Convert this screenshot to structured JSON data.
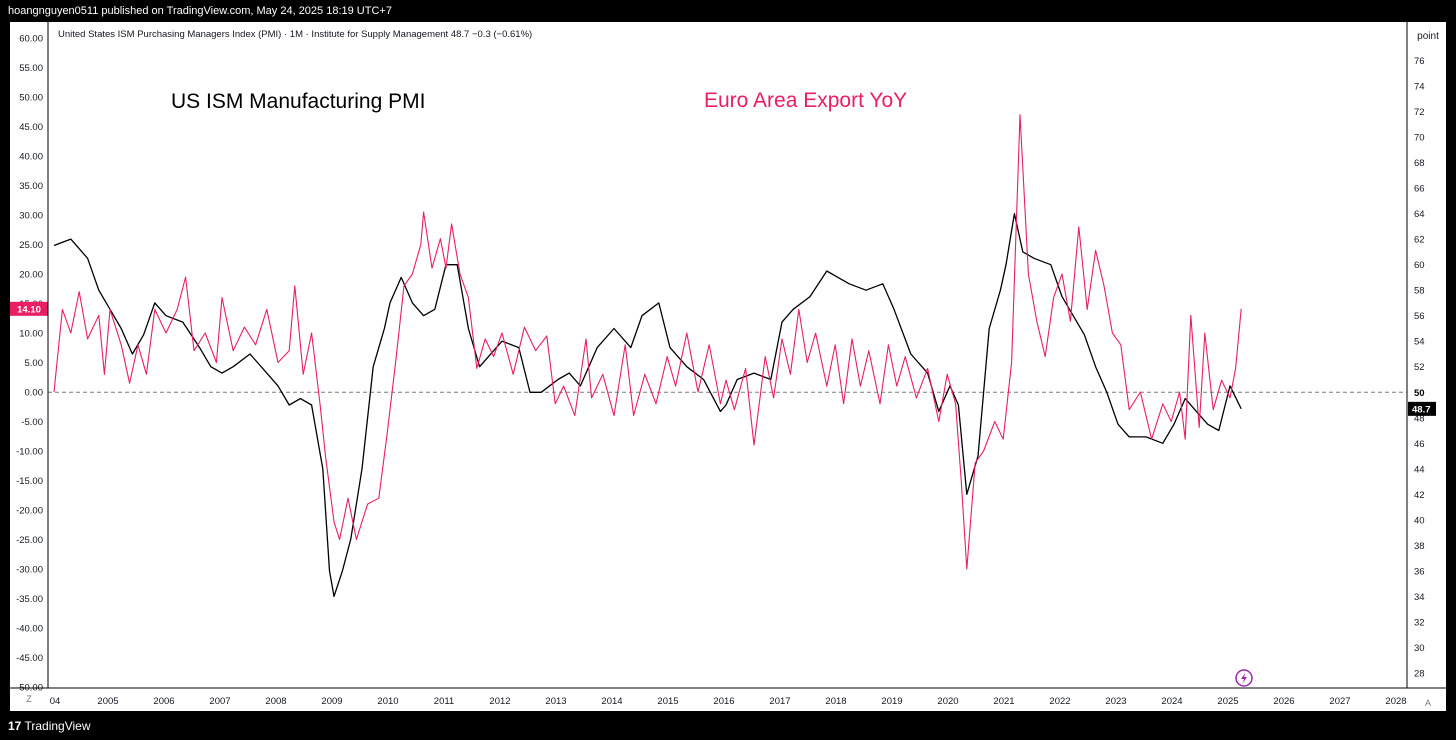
{
  "header": {
    "published_text": "hoangnguyen0511 published on TradingView.com, May 24, 2025 18:19 UTC+7"
  },
  "footer": {
    "brand": "TradingView",
    "logo_mark": "17"
  },
  "colors": {
    "pmi": "#000000",
    "export": "#e91e63",
    "background": "#ffffff",
    "frame": "#000000"
  },
  "chart_data": {
    "type": "line",
    "legend_text": "United States ISM Purchasing Managers Index (PMI) · 1M · Institute for Supply Management  48.7  −0.3 (−0.61%)",
    "annotations": {
      "pmi_label": "US ISM Manufacturing PMI",
      "export_label": "Euro Area Export YoY"
    },
    "left_axis": {
      "min": -50,
      "max": 60,
      "step": 5,
      "tick_labels": [
        "60.00",
        "55.00",
        "50.00",
        "45.00",
        "40.00",
        "35.00",
        "30.00",
        "25.00",
        "20.00",
        "15.00",
        "10.00",
        "5.00",
        "0.00",
        "-5.00",
        "-10.00",
        "-15.00",
        "-20.00",
        "-25.00",
        "-30.00",
        "-35.00",
        "-40.00",
        "-45.00",
        "-50.00"
      ],
      "current_label": "14.10",
      "corner_label": "Z"
    },
    "right_axis": {
      "unit": "point",
      "min": 26,
      "max": 78,
      "tick_labels": [
        "76",
        "74",
        "72",
        "70",
        "68",
        "66",
        "64",
        "62",
        "60",
        "58",
        "56",
        "54",
        "52",
        "50",
        "48",
        "46",
        "44",
        "42",
        "40",
        "38",
        "36",
        "34",
        "32",
        "30",
        "28"
      ],
      "reference_label": "50",
      "current_label": "48.7",
      "corner_label": "A"
    },
    "x_axis": {
      "tick_labels": [
        "04",
        "2005",
        "2006",
        "2007",
        "2008",
        "2009",
        "2010",
        "2011",
        "2012",
        "2013",
        "2014",
        "2015",
        "2016",
        "2017",
        "2018",
        "2019",
        "2020",
        "2021",
        "2022",
        "2023",
        "2024",
        "2025",
        "2026",
        "2027",
        "2028"
      ]
    },
    "series": [
      {
        "name": "US ISM Manufacturing PMI",
        "axis": "right",
        "points": [
          [
            2004.0,
            61.5
          ],
          [
            2004.3,
            62.0
          ],
          [
            2004.6,
            60.5
          ],
          [
            2004.8,
            58.0
          ],
          [
            2005.0,
            56.5
          ],
          [
            2005.2,
            55.0
          ],
          [
            2005.4,
            53.0
          ],
          [
            2005.6,
            54.5
          ],
          [
            2005.8,
            57.0
          ],
          [
            2006.0,
            56.0
          ],
          [
            2006.3,
            55.5
          ],
          [
            2006.6,
            53.5
          ],
          [
            2006.8,
            52.0
          ],
          [
            2007.0,
            51.5
          ],
          [
            2007.2,
            52.0
          ],
          [
            2007.5,
            53.0
          ],
          [
            2007.8,
            51.5
          ],
          [
            2008.0,
            50.5
          ],
          [
            2008.2,
            49.0
          ],
          [
            2008.4,
            49.5
          ],
          [
            2008.6,
            49.0
          ],
          [
            2008.8,
            44.0
          ],
          [
            2008.92,
            36.0
          ],
          [
            2009.0,
            34.0
          ],
          [
            2009.15,
            36.0
          ],
          [
            2009.3,
            38.5
          ],
          [
            2009.5,
            44.0
          ],
          [
            2009.7,
            52.0
          ],
          [
            2009.9,
            55.0
          ],
          [
            2010.0,
            57.0
          ],
          [
            2010.2,
            59.0
          ],
          [
            2010.4,
            57.0
          ],
          [
            2010.6,
            56.0
          ],
          [
            2010.8,
            56.5
          ],
          [
            2011.0,
            60.0
          ],
          [
            2011.2,
            60.0
          ],
          [
            2011.4,
            55.0
          ],
          [
            2011.6,
            52.0
          ],
          [
            2011.9,
            53.5
          ],
          [
            2012.0,
            54.0
          ],
          [
            2012.3,
            53.5
          ],
          [
            2012.5,
            50.0
          ],
          [
            2012.7,
            50.0
          ],
          [
            2013.0,
            51.0
          ],
          [
            2013.2,
            51.5
          ],
          [
            2013.4,
            50.5
          ],
          [
            2013.7,
            53.5
          ],
          [
            2014.0,
            55.0
          ],
          [
            2014.3,
            53.5
          ],
          [
            2014.5,
            56.0
          ],
          [
            2014.8,
            57.0
          ],
          [
            2015.0,
            53.5
          ],
          [
            2015.3,
            52.0
          ],
          [
            2015.6,
            51.0
          ],
          [
            2015.9,
            48.5
          ],
          [
            2016.0,
            49.0
          ],
          [
            2016.2,
            51.0
          ],
          [
            2016.5,
            51.5
          ],
          [
            2016.8,
            51.0
          ],
          [
            2017.0,
            55.5
          ],
          [
            2017.2,
            56.5
          ],
          [
            2017.5,
            57.5
          ],
          [
            2017.8,
            59.5
          ],
          [
            2018.0,
            59.0
          ],
          [
            2018.2,
            58.5
          ],
          [
            2018.5,
            58.0
          ],
          [
            2018.8,
            58.5
          ],
          [
            2019.0,
            56.5
          ],
          [
            2019.3,
            53.0
          ],
          [
            2019.6,
            51.5
          ],
          [
            2019.8,
            48.5
          ],
          [
            2020.0,
            50.5
          ],
          [
            2020.15,
            49.0
          ],
          [
            2020.3,
            42.0
          ],
          [
            2020.5,
            45.0
          ],
          [
            2020.7,
            55.0
          ],
          [
            2020.9,
            58.0
          ],
          [
            2021.0,
            60.0
          ],
          [
            2021.15,
            64.0
          ],
          [
            2021.3,
            61.0
          ],
          [
            2021.5,
            60.5
          ],
          [
            2021.8,
            60.0
          ],
          [
            2022.0,
            57.5
          ],
          [
            2022.2,
            56.0
          ],
          [
            2022.4,
            54.5
          ],
          [
            2022.6,
            52.0
          ],
          [
            2022.8,
            50.0
          ],
          [
            2023.0,
            47.5
          ],
          [
            2023.2,
            46.5
          ],
          [
            2023.5,
            46.5
          ],
          [
            2023.8,
            46.0
          ],
          [
            2024.0,
            47.5
          ],
          [
            2024.2,
            49.5
          ],
          [
            2024.4,
            48.5
          ],
          [
            2024.6,
            47.5
          ],
          [
            2024.8,
            47.0
          ],
          [
            2025.0,
            50.5
          ],
          [
            2025.2,
            48.7
          ]
        ]
      },
      {
        "name": "Euro Area Export YoY",
        "axis": "left",
        "points": [
          [
            2004.0,
            0.0
          ],
          [
            2004.15,
            14.0
          ],
          [
            2004.3,
            10.0
          ],
          [
            2004.45,
            17.0
          ],
          [
            2004.6,
            9.0
          ],
          [
            2004.8,
            13.0
          ],
          [
            2004.9,
            3.0
          ],
          [
            2005.0,
            14.0
          ],
          [
            2005.2,
            8.0
          ],
          [
            2005.35,
            1.5
          ],
          [
            2005.5,
            8.0
          ],
          [
            2005.65,
            3.0
          ],
          [
            2005.8,
            14.0
          ],
          [
            2006.0,
            10.0
          ],
          [
            2006.2,
            14.0
          ],
          [
            2006.35,
            19.5
          ],
          [
            2006.5,
            7.0
          ],
          [
            2006.7,
            10.0
          ],
          [
            2006.9,
            5.0
          ],
          [
            2007.0,
            16.0
          ],
          [
            2007.2,
            7.0
          ],
          [
            2007.4,
            11.0
          ],
          [
            2007.6,
            8.0
          ],
          [
            2007.8,
            14.0
          ],
          [
            2008.0,
            5.0
          ],
          [
            2008.2,
            7.0
          ],
          [
            2008.3,
            18.0
          ],
          [
            2008.45,
            3.0
          ],
          [
            2008.6,
            10.0
          ],
          [
            2008.75,
            -2.0
          ],
          [
            2008.85,
            -11.0
          ],
          [
            2009.0,
            -22.0
          ],
          [
            2009.1,
            -25.0
          ],
          [
            2009.25,
            -18.0
          ],
          [
            2009.4,
            -25.0
          ],
          [
            2009.6,
            -19.0
          ],
          [
            2009.8,
            -18.0
          ],
          [
            2009.95,
            -7.0
          ],
          [
            2010.1,
            5.0
          ],
          [
            2010.25,
            18.0
          ],
          [
            2010.4,
            20.0
          ],
          [
            2010.55,
            25.0
          ],
          [
            2010.6,
            30.5
          ],
          [
            2010.75,
            21.0
          ],
          [
            2010.9,
            26.0
          ],
          [
            2011.0,
            21.0
          ],
          [
            2011.1,
            28.5
          ],
          [
            2011.25,
            20.0
          ],
          [
            2011.4,
            16.0
          ],
          [
            2011.55,
            4.0
          ],
          [
            2011.7,
            9.0
          ],
          [
            2011.85,
            6.0
          ],
          [
            2012.0,
            10.0
          ],
          [
            2012.2,
            3.0
          ],
          [
            2012.4,
            11.0
          ],
          [
            2012.6,
            7.0
          ],
          [
            2012.8,
            9.5
          ],
          [
            2012.95,
            -2.0
          ],
          [
            2013.1,
            1.0
          ],
          [
            2013.3,
            -4.0
          ],
          [
            2013.5,
            9.0
          ],
          [
            2013.6,
            -1.0
          ],
          [
            2013.8,
            3.0
          ],
          [
            2014.0,
            -4.0
          ],
          [
            2014.2,
            8.0
          ],
          [
            2014.35,
            -4.0
          ],
          [
            2014.55,
            3.0
          ],
          [
            2014.75,
            -2.0
          ],
          [
            2014.95,
            6.0
          ],
          [
            2015.1,
            1.0
          ],
          [
            2015.3,
            10.0
          ],
          [
            2015.5,
            0.0
          ],
          [
            2015.7,
            8.0
          ],
          [
            2015.9,
            -2.0
          ],
          [
            2016.0,
            2.0
          ],
          [
            2016.15,
            -3.0
          ],
          [
            2016.35,
            4.0
          ],
          [
            2016.5,
            -9.0
          ],
          [
            2016.7,
            6.0
          ],
          [
            2016.85,
            -1.0
          ],
          [
            2017.0,
            9.0
          ],
          [
            2017.15,
            3.0
          ],
          [
            2017.3,
            14.0
          ],
          [
            2017.45,
            5.0
          ],
          [
            2017.6,
            10.0
          ],
          [
            2017.8,
            1.0
          ],
          [
            2017.95,
            8.0
          ],
          [
            2018.1,
            -2.0
          ],
          [
            2018.25,
            9.0
          ],
          [
            2018.4,
            1.0
          ],
          [
            2018.55,
            7.0
          ],
          [
            2018.75,
            -2.0
          ],
          [
            2018.9,
            8.0
          ],
          [
            2019.05,
            1.0
          ],
          [
            2019.2,
            6.0
          ],
          [
            2019.4,
            -1.0
          ],
          [
            2019.6,
            4.0
          ],
          [
            2019.8,
            -5.0
          ],
          [
            2019.95,
            3.0
          ],
          [
            2020.1,
            -2.0
          ],
          [
            2020.2,
            -15.0
          ],
          [
            2020.3,
            -30.0
          ],
          [
            2020.45,
            -12.0
          ],
          [
            2020.6,
            -10.0
          ],
          [
            2020.8,
            -5.0
          ],
          [
            2020.95,
            -8.0
          ],
          [
            2021.1,
            5.0
          ],
          [
            2021.25,
            47.0
          ],
          [
            2021.4,
            20.0
          ],
          [
            2021.55,
            12.0
          ],
          [
            2021.7,
            6.0
          ],
          [
            2021.85,
            16.0
          ],
          [
            2022.0,
            20.0
          ],
          [
            2022.15,
            12.0
          ],
          [
            2022.3,
            28.0
          ],
          [
            2022.45,
            14.0
          ],
          [
            2022.6,
            24.0
          ],
          [
            2022.75,
            18.0
          ],
          [
            2022.9,
            10.0
          ],
          [
            2023.05,
            8.0
          ],
          [
            2023.2,
            -3.0
          ],
          [
            2023.4,
            0.0
          ],
          [
            2023.6,
            -8.0
          ],
          [
            2023.8,
            -2.0
          ],
          [
            2023.95,
            -5.0
          ],
          [
            2024.1,
            0.0
          ],
          [
            2024.2,
            -8.0
          ],
          [
            2024.3,
            13.0
          ],
          [
            2024.45,
            -6.0
          ],
          [
            2024.55,
            10.0
          ],
          [
            2024.7,
            -3.0
          ],
          [
            2024.85,
            2.0
          ],
          [
            2025.0,
            -1.0
          ],
          [
            2025.1,
            4.0
          ],
          [
            2025.2,
            14.1
          ]
        ]
      }
    ]
  }
}
